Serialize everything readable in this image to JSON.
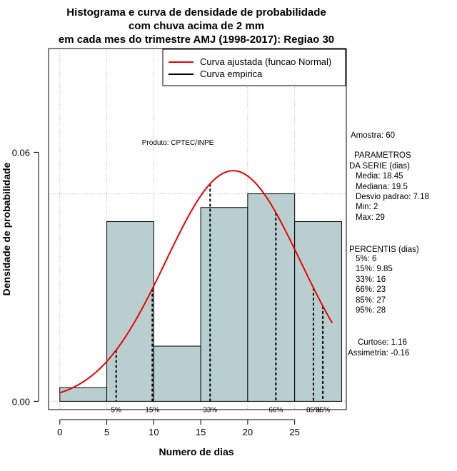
{
  "chart_data": {
    "type": "histogram",
    "title": [
      "Histograma e curva de densidade de probabilidade",
      "com chuva acima de 2 mm",
      "em cada mes do trimestre AMJ (1998-2017): Regiao 30"
    ],
    "xlabel": "Numero de dias",
    "ylabel": "Densidade de probabilidade",
    "xlim": [
      -1.2,
      30.5
    ],
    "ylim": [
      -0.002,
      0.085
    ],
    "x_ticks": [
      0,
      5,
      10,
      15,
      20,
      25
    ],
    "y_ticks": [
      0.0,
      0.06
    ],
    "y_tick_labels": [
      "0.00",
      "0.06"
    ],
    "bins": [
      {
        "start": 0,
        "end": 5,
        "density": 0.0033
      },
      {
        "start": 5,
        "end": 10,
        "density": 0.0433
      },
      {
        "start": 10,
        "end": 15,
        "density": 0.0133
      },
      {
        "start": 15,
        "end": 20,
        "density": 0.0467
      },
      {
        "start": 20,
        "end": 25,
        "density": 0.05
      },
      {
        "start": 25,
        "end": 30,
        "density": 0.0433
      }
    ],
    "grid_x": [
      0,
      5,
      10,
      20,
      25
    ],
    "grid_y": [
      0.0,
      0.05
    ],
    "normal_fit": {
      "mean": 18.45,
      "sd": 7.18,
      "x_from": 0,
      "x_to": 29,
      "color": "#ee0000"
    },
    "percentile_lines": [
      {
        "label": "5%",
        "x": 6
      },
      {
        "label": "15%",
        "x": 9.85
      },
      {
        "label": "33%",
        "x": 16
      },
      {
        "label": "66%",
        "x": 23
      },
      {
        "label": "85%",
        "x": 27
      },
      {
        "label": "95%",
        "x": 28
      }
    ],
    "legend": [
      {
        "label": "Curva ajustada (funcao Normal)",
        "color": "#ee0000"
      },
      {
        "label": "Curva empirica",
        "color": "#000000"
      }
    ],
    "legend_position": "top-right",
    "bar_color": "#b9cfcf",
    "annotation": "Produto: CPTEC/INPE"
  },
  "stats": {
    "amostra": "Amostra: 60",
    "param_header1": "PARAMETROS",
    "param_header2": "DA SERIE (dias)",
    "media": "Media: 18.45",
    "mediana": "Mediana: 19.5",
    "desvio": "Desvio padrao: 7.18",
    "min": "Min: 2",
    "max": "Max: 29",
    "perc_header": "PERCENTIS (dias)",
    "p5": "5%: 6",
    "p15": "15%: 9.85",
    "p33": "33%: 16",
    "p66": "66%: 23",
    "p85": "85%: 27",
    "p95": "95%: 28",
    "curtose": "Curtose: 1.16",
    "assimetria": "Assimetria: -0.16"
  }
}
